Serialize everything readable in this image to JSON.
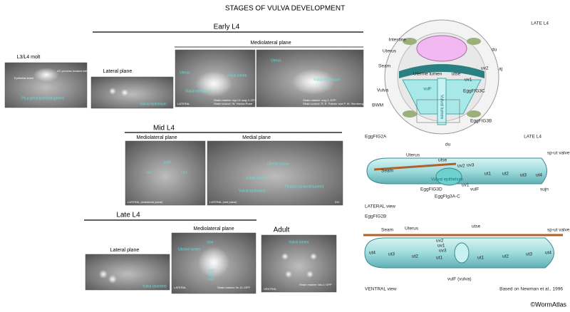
{
  "title": "STAGES OF VULVA DEVELOPMENT",
  "footer": "©WormAtlas",
  "headings": {
    "early": "Early L4",
    "mid": "Mid L4",
    "late": "Late L4",
    "adult": "Adult"
  },
  "planes": {
    "early_mediolateral": "Mediolateral plane",
    "mid_mediolateral": "Mediolateral plane",
    "mid_medial": "Medial plane",
    "late_mediolateral": "Mediolateral plane"
  },
  "panels": [
    {
      "title": "L3/L4 molt",
      "labels": [
        "Epithelial sheet",
        "AC process invades between P6.p descendants",
        "P6.p great-granddaughters"
      ]
    },
    {
      "title": "Lateral plane",
      "labels": [
        "Vulval epithelium"
      ]
    },
    {
      "labels": [
        "Uterus",
        "Vulval lumen",
        "Vulval epithelium",
        "LATERAL",
        "Strain marker: egl-13::pug-2::GFP",
        "Strain source: W. Hanna-Rose"
      ]
    },
    {
      "labels": [
        "Uterus",
        "Vulval epithelium",
        "Strain marker: cog-1::GFP",
        "Strain source: R. E. Palmer and P. W. Sternberg"
      ]
    },
    {
      "labels": [
        "vulD",
        "uv2",
        "uv1",
        "LATERAL (midlateral plane)"
      ]
    },
    {
      "labels": [
        "Uterine lumen",
        "Vulval lumen",
        "Vulval epithelium",
        "Fingers (ut toroid lumen)",
        "LATERAL (mid plane)",
        "DIC"
      ]
    },
    {
      "title": "Lateral plane",
      "labels": [
        "Vulva (everted)"
      ]
    },
    {
      "labels": [
        "Uterine lumen",
        "utse",
        "vulF",
        "vulE",
        "vulD",
        "LATERAL",
        "Strain marker: lin-11::GFP"
      ]
    },
    {
      "labels": [
        "Vulval lumen",
        "VENTRAL",
        "Strain marker: ida-1::GFP"
      ]
    }
  ],
  "cross_section": {
    "title": "LATE L4",
    "labels": [
      "Intestine",
      "Uterus",
      "du",
      "Seam",
      "aj",
      "Vulva",
      "BWM",
      "Uterine lumen",
      "utse",
      "uv2",
      "uv1",
      "vulF",
      "Vulval lumen",
      "EggFIG3C",
      "EggFIG3B"
    ]
  },
  "lateral_view": {
    "figure": "EggFIG2A",
    "stage": "LATE L4",
    "view": "LATERAL view",
    "labels": [
      "du",
      "Uterus",
      "utse",
      "uv2",
      "uv3",
      "Seam",
      "ut1",
      "ut2",
      "ut3",
      "ut4",
      "sp-ut valve",
      "sujn",
      "EggFIG3D",
      "EggFIg3A-C",
      "Vulval epithelium",
      "vulF",
      "uv1"
    ]
  },
  "ventral_view": {
    "figure": "EggFIG2B",
    "view": "VENTRAL view",
    "credit": "Based on Newman et al., 1996",
    "labels": [
      "Seam",
      "Uterus",
      "utse",
      "uv2",
      "uv1",
      "uv3",
      "ut4",
      "ut3",
      "ut2",
      "ut1",
      "ut1",
      "ut2",
      "ut3",
      "ut4",
      "sp-ut valve",
      "vulF (vulva)"
    ]
  }
}
